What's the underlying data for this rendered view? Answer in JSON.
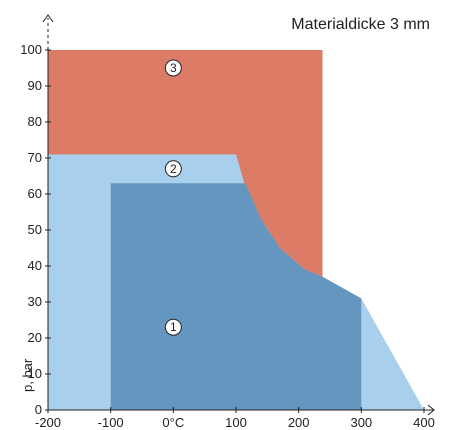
{
  "chart_data": {
    "type": "area",
    "title": "Materialdicke 3 mm",
    "xlabel": "",
    "ylabel": "p, bar",
    "xlim": [
      -200,
      400
    ],
    "ylim": [
      0,
      100
    ],
    "x_ticks": [
      -200,
      -100,
      0,
      100,
      200,
      300,
      400
    ],
    "x_tick_labels": [
      "-200",
      "-100",
      "0°C",
      "100",
      "200",
      "300",
      "400"
    ],
    "y_ticks": [
      0,
      10,
      20,
      30,
      40,
      50,
      60,
      70,
      80,
      90,
      100
    ],
    "y_tick_labels": [
      "0",
      "10",
      "20",
      "30",
      "40",
      "50",
      "60",
      "70",
      "80",
      "90",
      "100"
    ],
    "grid": false,
    "colors": {
      "zone1": "#6496c0",
      "zone2": "#a8d0ec",
      "zone3": "#dc7c66",
      "axis": "#222222"
    },
    "regions": [
      {
        "name": "3",
        "label": "3",
        "color_key": "zone3",
        "label_point": [
          0,
          95
        ],
        "polygon": [
          [
            -200,
            100
          ],
          [
            238,
            100
          ],
          [
            238,
            37
          ],
          [
            -200,
            37
          ]
        ]
      },
      {
        "name": "2",
        "label": "2",
        "color_key": "zone2",
        "label_point": [
          0,
          67
        ],
        "polygon": [
          [
            -200,
            0
          ],
          [
            -200,
            71
          ],
          [
            100,
            71
          ],
          [
            115,
            62
          ],
          [
            140,
            53
          ],
          [
            170,
            45
          ],
          [
            210,
            39
          ],
          [
            238,
            37
          ],
          [
            300,
            31
          ],
          [
            400,
            0
          ]
        ]
      },
      {
        "name": "1",
        "label": "1",
        "color_key": "zone1",
        "label_point": [
          0,
          23
        ],
        "polygon": [
          [
            -100,
            0
          ],
          [
            -100,
            63
          ],
          [
            115,
            63
          ],
          [
            140,
            53
          ],
          [
            170,
            45
          ],
          [
            210,
            39
          ],
          [
            238,
            37
          ],
          [
            300,
            31
          ],
          [
            300,
            0
          ]
        ]
      }
    ]
  }
}
